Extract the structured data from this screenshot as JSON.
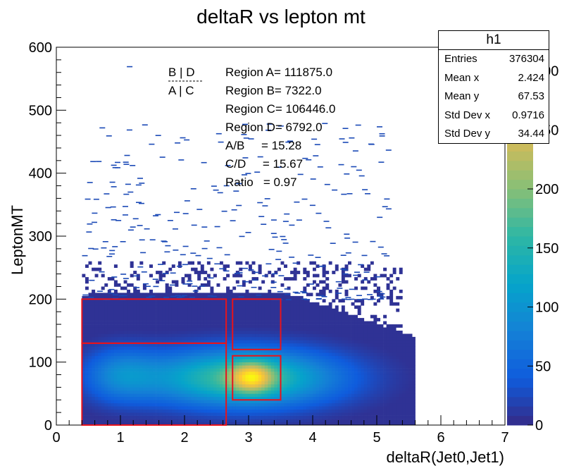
{
  "chart_data": {
    "type": "heatmap",
    "title": "deltaR vs lepton mt",
    "xlabel": "deltaR(Jet0,Jet1)",
    "ylabel": "LeptonMT",
    "xlim": [
      0,
      7
    ],
    "ylim": [
      0,
      600
    ],
    "x_ticks": [
      "0",
      "1",
      "2",
      "3",
      "4",
      "5",
      "6",
      "7"
    ],
    "y_ticks": [
      "0",
      "100",
      "200",
      "300",
      "400",
      "500",
      "600"
    ],
    "z_ticks": [
      "0",
      "50",
      "100",
      "150",
      "200",
      "250",
      "300"
    ],
    "zlim": [
      0,
      320
    ],
    "peak": {
      "x": 3.05,
      "y": 75,
      "z": 310
    },
    "regions": [
      {
        "name": "A",
        "x": [
          0.4,
          2.65
        ],
        "y": [
          0,
          130
        ]
      },
      {
        "name": "B",
        "x": [
          0.4,
          2.65
        ],
        "y": [
          130,
          200
        ]
      },
      {
        "name": "C",
        "x": [
          2.75,
          3.5
        ],
        "y": [
          40,
          110
        ]
      },
      {
        "name": "D",
        "x": [
          2.75,
          3.5
        ],
        "y": [
          120,
          200
        ]
      }
    ],
    "legend_top": "B | D",
    "legend_bottom": "A | C",
    "annotations": [
      "Region A= 111875.0",
      "Region B= 7322.0",
      "Region C= 106446.0",
      "Region D= 6792.0",
      "A/B     = 15.28",
      "C/D     = 15.67",
      "Ratio   = 0.97"
    ],
    "stats": {
      "title": "h1",
      "rows": [
        {
          "label": "Entries",
          "value": "376304"
        },
        {
          "label": "Mean x",
          "value": "2.424"
        },
        {
          "label": "Mean y",
          "value": "67.53"
        },
        {
          "label": "Std Dev x",
          "value": "0.9716"
        },
        {
          "label": "Std Dev y",
          "value": "34.44"
        }
      ]
    },
    "palette": [
      "#352a87",
      "#0f5cdd",
      "#1481d6",
      "#06a4ca",
      "#2eb7a4",
      "#87bf77",
      "#d1bb59",
      "#fec832",
      "#f9fb0e"
    ],
    "region_color": "#e8131b"
  }
}
